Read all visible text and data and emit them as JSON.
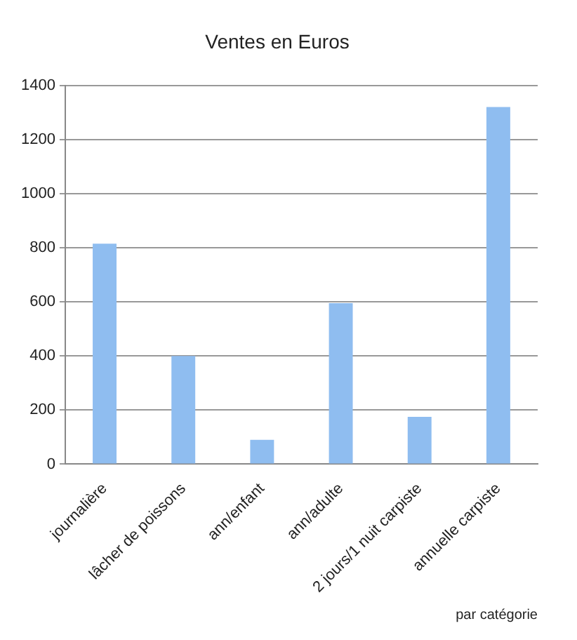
{
  "chart_data": {
    "type": "bar",
    "title": "Ventes en Euros",
    "xlabel": "par catégorie",
    "categories": [
      "journalière",
      "lâcher de poissons",
      "ann/enfant",
      "ann/adulte",
      "2 jours/1 nuit carpiste",
      "annuelle carpiste"
    ],
    "values": [
      815,
      400,
      90,
      595,
      175,
      1320
    ],
    "color": "#8fbdf0",
    "ylim": [
      0,
      1400
    ],
    "yticks": [
      0,
      200,
      400,
      600,
      800,
      1000,
      1200,
      1400
    ],
    "grid": "y",
    "legend": false
  }
}
